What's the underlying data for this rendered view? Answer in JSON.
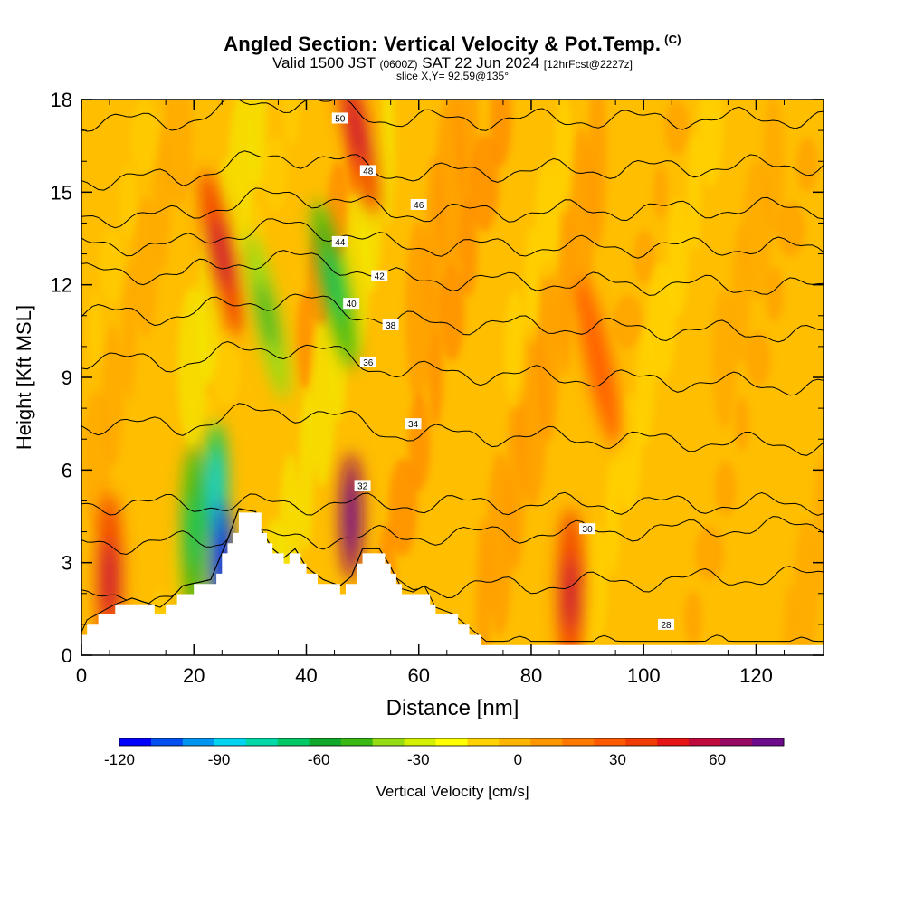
{
  "header": {
    "title": "Angled Section: Vertical Velocity & Pot.Temp.",
    "title_suffix": "(C)",
    "valid_prefix": "Valid 1500 JST",
    "valid_utc": "(0600Z)",
    "valid_date": "SAT 22 Jun 2024",
    "forecast": "[12hrFcst@2227z]",
    "slice": "slice X,Y= 92,59@135°"
  },
  "chart_data": {
    "type": "heatmap",
    "xlabel": "Distance [nm]",
    "ylabel": "Height [Kft MSL]",
    "xlim": [
      0,
      132
    ],
    "ylim": [
      0,
      18
    ],
    "x_ticks": [
      0,
      20,
      40,
      60,
      80,
      100,
      120
    ],
    "x_tick_labels": [
      "0",
      "20",
      "40",
      "60",
      "80",
      "100",
      "120"
    ],
    "y_ticks": [
      0,
      3,
      6,
      9,
      12,
      15,
      18
    ],
    "y_tick_labels": [
      "0",
      "3",
      "6",
      "9",
      "12",
      "15",
      "18"
    ],
    "colorbar": {
      "label": "Vertical Velocity [cm/s]",
      "range": [
        -120,
        80
      ],
      "tick_values": [
        -120,
        -90,
        -60,
        -30,
        0,
        30,
        60
      ],
      "tick_labels": [
        "-120",
        "-90",
        "-60",
        "-30",
        "0",
        "30",
        "60"
      ],
      "colors": [
        "#0000ff",
        "#0050f0",
        "#0096f0",
        "#00d4f0",
        "#00d8a8",
        "#00c864",
        "#10a82a",
        "#3ab814",
        "#96dc14",
        "#d2f000",
        "#ffff00",
        "#ffd200",
        "#ffb400",
        "#ff9600",
        "#ff7800",
        "#ff5a00",
        "#f03c00",
        "#e61414",
        "#be0a3c",
        "#960a64",
        "#6e0a8c"
      ]
    },
    "terrain": [
      [
        0,
        0.6
      ],
      [
        1,
        1
      ],
      [
        6,
        1.5
      ],
      [
        9,
        1.7
      ],
      [
        14,
        1.4
      ],
      [
        16,
        1.7
      ],
      [
        18,
        2.1
      ],
      [
        23,
        2.3
      ],
      [
        26,
        3.6
      ],
      [
        28,
        4.6
      ],
      [
        31,
        4.5
      ],
      [
        32,
        3.9
      ],
      [
        34,
        3.3
      ],
      [
        36,
        3.0
      ],
      [
        38,
        3.3
      ],
      [
        40,
        2.7
      ],
      [
        43,
        2.3
      ],
      [
        46,
        2.1
      ],
      [
        48,
        2.4
      ],
      [
        50,
        3.3
      ],
      [
        53,
        3.3
      ],
      [
        55,
        2.7
      ],
      [
        57,
        2.0
      ],
      [
        59,
        1.9
      ],
      [
        61,
        2.1
      ],
      [
        63,
        1.4
      ],
      [
        66,
        1.2
      ],
      [
        68,
        0.9
      ],
      [
        72,
        0.3
      ],
      [
        132,
        0.3
      ]
    ],
    "theta_contours": [
      {
        "level": 28,
        "label": "28",
        "label_at": [
          104,
          1.0
        ]
      },
      {
        "level": 30,
        "label": "30",
        "label_at": [
          90,
          4.1
        ]
      },
      {
        "level": 32,
        "label": "32",
        "label_at": [
          50,
          5.5
        ]
      },
      {
        "level": 34,
        "label": "34",
        "label_at": [
          59,
          7.5
        ]
      },
      {
        "level": 36,
        "label": "36",
        "label_at": [
          51,
          9.5
        ]
      },
      {
        "level": 38,
        "label": "38",
        "label_at": [
          55,
          10.7
        ]
      },
      {
        "level": 40,
        "label": "40",
        "label_at": [
          48,
          11.4
        ]
      },
      {
        "level": 42,
        "label": "42",
        "label_at": [
          53,
          12.3
        ]
      },
      {
        "level": 44,
        "label": "44",
        "label_at": [
          46,
          13.4
        ]
      },
      {
        "level": 46,
        "label": "46",
        "label_at": [
          60,
          14.6
        ]
      },
      {
        "level": 48,
        "label": "48",
        "label_at": [
          51,
          15.7
        ]
      },
      {
        "level": 50,
        "label": "50",
        "label_at": [
          46,
          17.4
        ]
      }
    ],
    "velocity_features": [
      {
        "x": 5,
        "y": 2.5,
        "value": 40
      },
      {
        "x": 20,
        "y": 4.0,
        "value": -50
      },
      {
        "x": 24,
        "y": 5.5,
        "value": -70
      },
      {
        "x": 25,
        "y": 3.0,
        "value": -110
      },
      {
        "x": 25,
        "y": 13.0,
        "value": 40
      },
      {
        "x": 33,
        "y": 11.0,
        "value": -40
      },
      {
        "x": 45,
        "y": 12.0,
        "value": -50
      },
      {
        "x": 48,
        "y": 4.5,
        "value": 70
      },
      {
        "x": 49,
        "y": 17.0,
        "value": 40
      },
      {
        "x": 87,
        "y": 2.0,
        "value": 40
      },
      {
        "x": 92,
        "y": 9.5,
        "value": 30
      }
    ]
  }
}
